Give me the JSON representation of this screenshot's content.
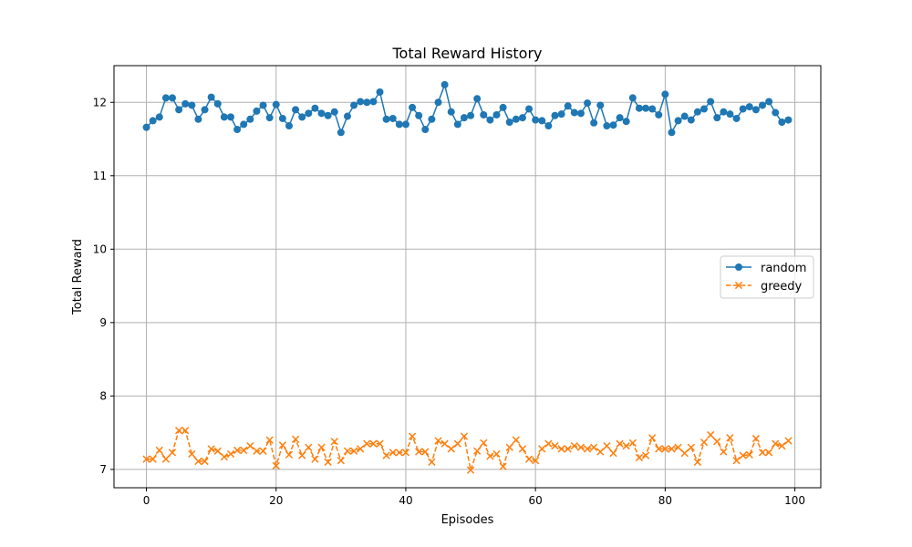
{
  "chart_data": {
    "type": "line",
    "title": "Total Reward History",
    "xlabel": "Episodes",
    "ylabel": "Total Reward",
    "xlim": [
      -5,
      104
    ],
    "ylim": [
      6.75,
      12.5
    ],
    "x_ticks": [
      0,
      20,
      40,
      60,
      80,
      100
    ],
    "y_ticks": [
      7,
      8,
      9,
      10,
      11,
      12
    ],
    "grid": true,
    "legend_position": "center-right",
    "series": [
      {
        "name": "random",
        "color": "#1f77b4",
        "marker": "circle",
        "linestyle": "solid",
        "values": [
          11.66,
          11.75,
          11.8,
          12.06,
          12.06,
          11.9,
          11.98,
          11.96,
          11.77,
          11.9,
          12.07,
          11.98,
          11.8,
          11.8,
          11.63,
          11.7,
          11.77,
          11.88,
          11.96,
          11.79,
          11.97,
          11.78,
          11.68,
          11.9,
          11.8,
          11.85,
          11.92,
          11.85,
          11.82,
          11.87,
          11.59,
          11.81,
          11.96,
          12.01,
          12.0,
          12.01,
          12.14,
          11.77,
          11.78,
          11.7,
          11.7,
          11.93,
          11.82,
          11.63,
          11.77,
          12.0,
          12.24,
          11.87,
          11.7,
          11.79,
          11.82,
          12.05,
          11.83,
          11.76,
          11.83,
          11.93,
          11.73,
          11.77,
          11.79,
          11.91,
          11.76,
          11.75,
          11.68,
          11.82,
          11.84,
          11.95,
          11.86,
          11.85,
          11.99,
          11.72,
          11.96,
          11.68,
          11.69,
          11.79,
          11.74,
          12.06,
          11.92,
          11.92,
          11.91,
          11.83,
          12.11,
          11.59,
          11.75,
          11.81,
          11.76,
          11.87,
          11.91,
          12.01,
          11.79,
          11.87,
          11.84,
          11.78,
          11.91,
          11.94,
          11.9,
          11.96,
          12.01,
          11.86,
          11.73,
          11.76
        ]
      },
      {
        "name": "greedy",
        "color": "#ff7f0e",
        "marker": "x",
        "linestyle": "dashed",
        "values": [
          7.14,
          7.14,
          7.26,
          7.14,
          7.23,
          7.53,
          7.53,
          7.21,
          7.11,
          7.11,
          7.28,
          7.25,
          7.17,
          7.21,
          7.26,
          7.26,
          7.32,
          7.25,
          7.25,
          7.4,
          7.05,
          7.33,
          7.2,
          7.41,
          7.19,
          7.3,
          7.14,
          7.3,
          7.1,
          7.38,
          7.12,
          7.25,
          7.25,
          7.28,
          7.35,
          7.35,
          7.35,
          7.19,
          7.23,
          7.23,
          7.23,
          7.45,
          7.24,
          7.24,
          7.1,
          7.39,
          7.35,
          7.28,
          7.35,
          7.45,
          6.99,
          7.25,
          7.36,
          7.18,
          7.21,
          7.04,
          7.3,
          7.4,
          7.28,
          7.14,
          7.12,
          7.28,
          7.35,
          7.32,
          7.28,
          7.28,
          7.32,
          7.3,
          7.28,
          7.3,
          7.24,
          7.32,
          7.22,
          7.35,
          7.32,
          7.36,
          7.16,
          7.19,
          7.43,
          7.28,
          7.28,
          7.28,
          7.3,
          7.22,
          7.3,
          7.1,
          7.37,
          7.47,
          7.38,
          7.24,
          7.43,
          7.12,
          7.19,
          7.2,
          7.42,
          7.23,
          7.23,
          7.35,
          7.32,
          7.39
        ]
      }
    ]
  }
}
